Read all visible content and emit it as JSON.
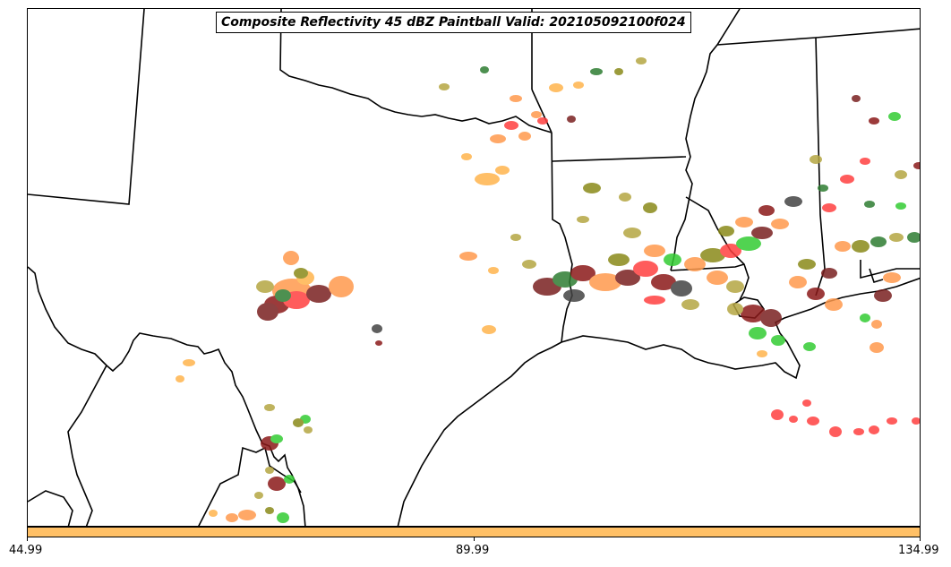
{
  "title": "Composite Reflectivity 45 dBZ Paintball Valid: 202105092100f024",
  "colorbar": {
    "color": "#ffc066",
    "ticks": [
      "44.99",
      "89.99",
      "134.99"
    ]
  },
  "palette": {
    "orange": "#ff9a4d",
    "light_orange": "#ffb44d",
    "red": "#ff4040",
    "dark_red": "#8b1a1a",
    "green": "#33cc33",
    "dark_green": "#2e7d32",
    "olive": "#8a8a1a",
    "khaki": "#b5a642",
    "gray": "#444444",
    "maroon": "#7a2020"
  }
}
